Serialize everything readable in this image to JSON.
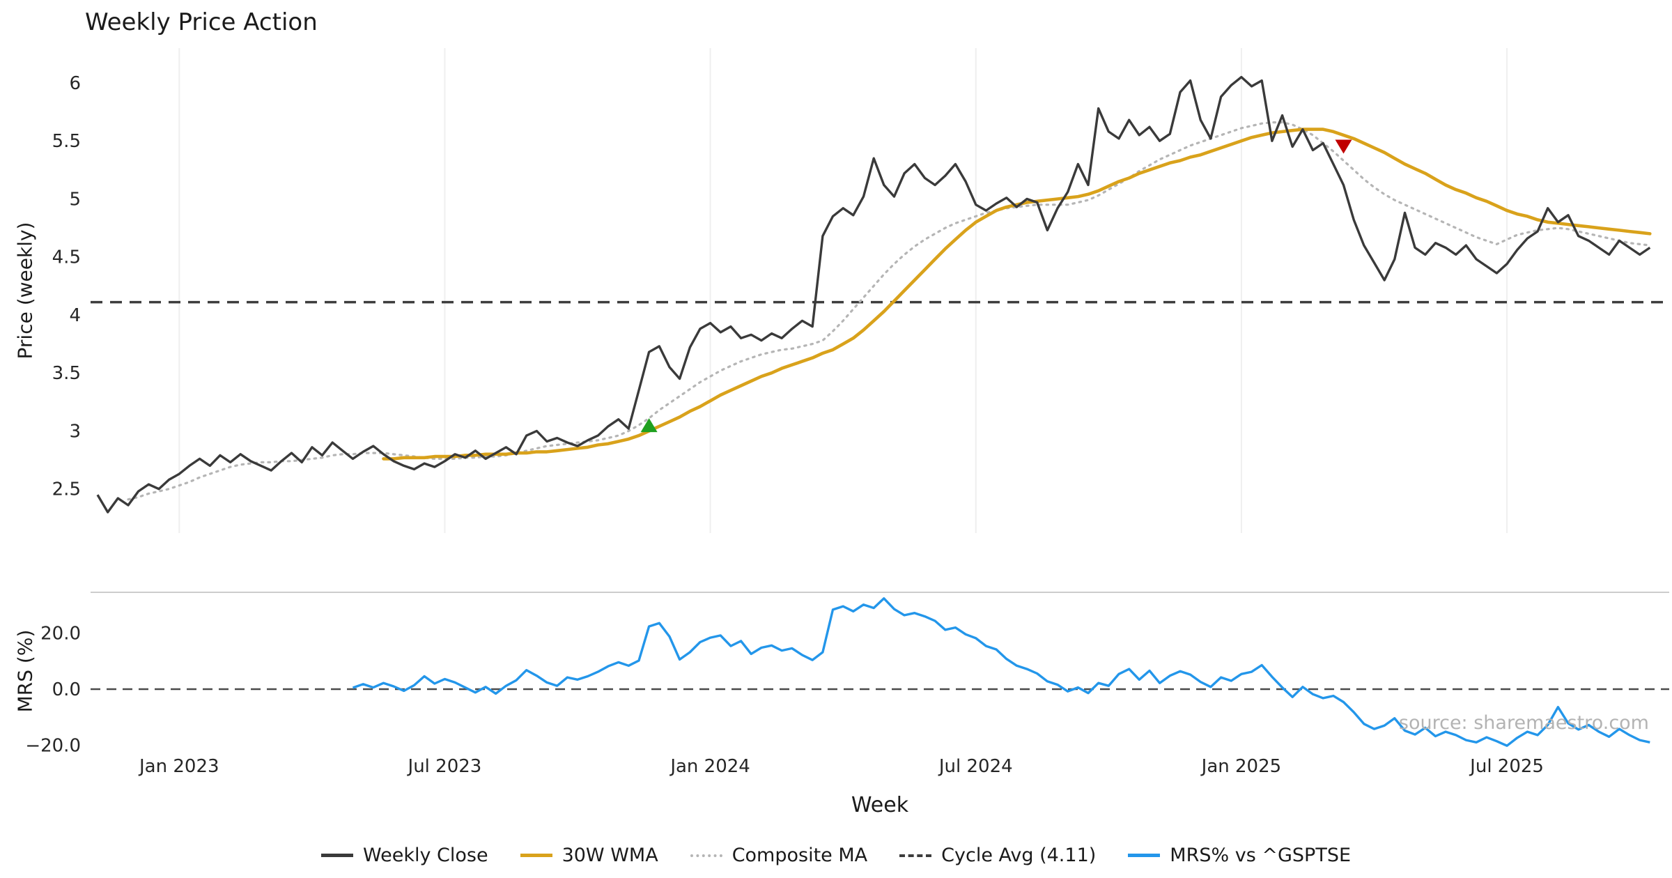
{
  "title": "Weekly Price Action",
  "source": "source: sharemaestro.com",
  "colors": {
    "close": "#3a3a3a",
    "wma": "#d9a21b",
    "composite": "#b5b5b5",
    "cycle": "#3d3d3d",
    "mrs": "#2396ea",
    "buy": "#1fa01f",
    "sell": "#c00000",
    "grid": "#efefef",
    "separator": "#cccccc",
    "zero_dash": "#4a4a4a"
  },
  "legend": [
    {
      "label": "Weekly Close",
      "style": "solid",
      "color": "#3a3a3a"
    },
    {
      "label": "30W WMA",
      "style": "solid",
      "color": "#d9a21b"
    },
    {
      "label": "Composite MA",
      "style": "dotted",
      "color": "#b5b5b5"
    },
    {
      "label": "Cycle Avg (4.11)",
      "style": "dashed",
      "color": "#3d3d3d"
    },
    {
      "label": "MRS% vs ^GSPTSE",
      "style": "solid",
      "color": "#2396ea"
    }
  ],
  "chart_data": [
    {
      "type": "line",
      "panel": "price",
      "title": "Weekly Price Action",
      "xlabel": "Week",
      "ylabel": "Price (weekly)",
      "ylim": [
        2.12,
        6.3
      ],
      "xlim_weeks": [
        0,
        152
      ],
      "grid": "vertical-only",
      "legend_position": "bottom",
      "cycle_avg": 4.11,
      "x_ticks": [
        {
          "week": 8,
          "label": "Jan 2023"
        },
        {
          "week": 34,
          "label": "Jul 2023"
        },
        {
          "week": 60,
          "label": "Jan 2024"
        },
        {
          "week": 86,
          "label": "Jul 2024"
        },
        {
          "week": 112,
          "label": "Jan 2025"
        },
        {
          "week": 138,
          "label": "Jul 2025"
        }
      ],
      "y_ticks": [
        {
          "value": 2.5,
          "label": "2.5"
        },
        {
          "value": 3,
          "label": "3"
        },
        {
          "value": 3.5,
          "label": "3.5"
        },
        {
          "value": 4,
          "label": "4"
        },
        {
          "value": 4.5,
          "label": "4.5"
        },
        {
          "value": 5,
          "label": "5"
        },
        {
          "value": 5.5,
          "label": "5.5"
        },
        {
          "value": 6,
          "label": "6"
        }
      ],
      "markers": [
        {
          "type": "buy",
          "week": 54,
          "value": 3.05
        },
        {
          "type": "sell",
          "week": 122,
          "value": 5.45
        }
      ],
      "series": [
        {
          "name": "Weekly Close",
          "start_week": 0,
          "values": [
            2.45,
            2.3,
            2.42,
            2.36,
            2.48,
            2.54,
            2.5,
            2.58,
            2.63,
            2.7,
            2.76,
            2.7,
            2.79,
            2.73,
            2.8,
            2.74,
            2.7,
            2.66,
            2.74,
            2.81,
            2.73,
            2.86,
            2.79,
            2.9,
            2.83,
            2.76,
            2.82,
            2.87,
            2.8,
            2.74,
            2.7,
            2.67,
            2.72,
            2.69,
            2.74,
            2.8,
            2.77,
            2.83,
            2.76,
            2.81,
            2.86,
            2.8,
            2.96,
            3.0,
            2.91,
            2.94,
            2.9,
            2.87,
            2.92,
            2.96,
            3.04,
            3.1,
            3.02,
            3.35,
            3.68,
            3.73,
            3.55,
            3.45,
            3.72,
            3.88,
            3.93,
            3.85,
            3.9,
            3.8,
            3.83,
            3.78,
            3.84,
            3.8,
            3.88,
            3.95,
            3.9,
            4.68,
            4.85,
            4.92,
            4.86,
            5.02,
            5.35,
            5.12,
            5.02,
            5.22,
            5.3,
            5.18,
            5.12,
            5.2,
            5.3,
            5.15,
            4.95,
            4.9,
            4.96,
            5.01,
            4.93,
            5.0,
            4.97,
            4.73,
            4.92,
            5.06,
            5.3,
            5.12,
            5.78,
            5.58,
            5.52,
            5.68,
            5.55,
            5.62,
            5.5,
            5.56,
            5.92,
            6.02,
            5.68,
            5.52,
            5.88,
            5.98,
            6.05,
            5.97,
            6.02,
            5.5,
            5.72,
            5.45,
            5.6,
            5.42,
            5.48,
            5.3,
            5.12,
            4.82,
            4.6,
            4.45,
            4.3,
            4.48,
            4.88,
            4.58,
            4.52,
            4.62,
            4.58,
            4.52,
            4.6,
            4.48,
            4.42,
            4.36,
            4.44,
            4.56,
            4.66,
            4.72,
            4.92,
            4.8,
            4.86,
            4.68,
            4.64,
            4.58,
            4.52,
            4.64,
            4.58,
            4.52,
            4.58
          ]
        },
        {
          "name": "30W WMA",
          "start_week": 28,
          "values": [
            2.76,
            2.76,
            2.77,
            2.77,
            2.77,
            2.78,
            2.78,
            2.78,
            2.79,
            2.79,
            2.8,
            2.8,
            2.8,
            2.81,
            2.81,
            2.82,
            2.82,
            2.83,
            2.84,
            2.85,
            2.86,
            2.88,
            2.89,
            2.91,
            2.93,
            2.96,
            3.0,
            3.04,
            3.08,
            3.12,
            3.17,
            3.21,
            3.26,
            3.31,
            3.35,
            3.39,
            3.43,
            3.47,
            3.5,
            3.54,
            3.57,
            3.6,
            3.63,
            3.67,
            3.7,
            3.75,
            3.8,
            3.87,
            3.95,
            4.03,
            4.12,
            4.21,
            4.3,
            4.39,
            4.48,
            4.57,
            4.65,
            4.73,
            4.8,
            4.85,
            4.9,
            4.93,
            4.95,
            4.97,
            4.98,
            4.99,
            5.0,
            5.01,
            5.02,
            5.04,
            5.07,
            5.11,
            5.15,
            5.18,
            5.22,
            5.25,
            5.28,
            5.31,
            5.33,
            5.36,
            5.38,
            5.41,
            5.44,
            5.47,
            5.5,
            5.53,
            5.55,
            5.57,
            5.58,
            5.59,
            5.6,
            5.6,
            5.6,
            5.58,
            5.55,
            5.52,
            5.48,
            5.44,
            5.4,
            5.35,
            5.3,
            5.26,
            5.22,
            5.17,
            5.12,
            5.08,
            5.05,
            5.01,
            4.98,
            4.94,
            4.9,
            4.87,
            4.85,
            4.82,
            4.8,
            4.79,
            4.78,
            4.77,
            4.76,
            4.75,
            4.74,
            4.73,
            4.72,
            4.71,
            4.7
          ]
        },
        {
          "name": "Composite MA",
          "start_week": 3,
          "values": [
            2.41,
            2.43,
            2.46,
            2.48,
            2.5,
            2.53,
            2.56,
            2.6,
            2.63,
            2.66,
            2.69,
            2.71,
            2.72,
            2.73,
            2.73,
            2.74,
            2.74,
            2.75,
            2.76,
            2.77,
            2.79,
            2.8,
            2.8,
            2.81,
            2.81,
            2.81,
            2.8,
            2.79,
            2.78,
            2.77,
            2.76,
            2.76,
            2.76,
            2.77,
            2.77,
            2.78,
            2.78,
            2.79,
            2.81,
            2.83,
            2.85,
            2.87,
            2.88,
            2.89,
            2.9,
            2.91,
            2.92,
            2.94,
            2.96,
            3.0,
            3.05,
            3.11,
            3.18,
            3.24,
            3.3,
            3.36,
            3.42,
            3.47,
            3.52,
            3.56,
            3.6,
            3.63,
            3.66,
            3.68,
            3.7,
            3.71,
            3.73,
            3.75,
            3.78,
            3.86,
            3.95,
            4.05,
            4.15,
            4.25,
            4.35,
            4.44,
            4.52,
            4.59,
            4.65,
            4.7,
            4.75,
            4.79,
            4.82,
            4.85,
            4.88,
            4.9,
            4.92,
            4.93,
            4.94,
            4.95,
            4.95,
            4.95,
            4.95,
            4.97,
            4.99,
            5.03,
            5.08,
            5.13,
            5.18,
            5.24,
            5.29,
            5.34,
            5.38,
            5.42,
            5.46,
            5.49,
            5.52,
            5.55,
            5.58,
            5.61,
            5.63,
            5.65,
            5.66,
            5.66,
            5.64,
            5.6,
            5.55,
            5.48,
            5.41,
            5.33,
            5.25,
            5.17,
            5.1,
            5.04,
            4.99,
            4.95,
            4.91,
            4.87,
            4.83,
            4.79,
            4.75,
            4.71,
            4.67,
            4.64,
            4.61,
            4.65,
            4.69,
            4.71,
            4.73,
            4.74,
            4.75,
            4.74,
            4.72,
            4.7,
            4.68,
            4.66,
            4.64,
            4.62,
            4.61,
            4.6
          ]
        }
      ]
    },
    {
      "type": "line",
      "panel": "mrs",
      "xlabel": "Week",
      "ylabel": "MRS (%)",
      "ylim": [
        -22.4,
        34.6
      ],
      "zero_line": 0,
      "grid": "off",
      "y_ticks": [
        {
          "value": 20,
          "label": "20.0"
        },
        {
          "value": 0,
          "label": "0.0"
        },
        {
          "value": -20,
          "label": "−20.0"
        }
      ],
      "series": [
        {
          "name": "MRS% vs ^GSPTSE",
          "start_week": 25,
          "values": [
            0.5,
            1.8,
            0.6,
            2.2,
            1.0,
            -0.6,
            1.4,
            4.6,
            2.0,
            3.6,
            2.4,
            0.6,
            -1.2,
            0.8,
            -1.6,
            1.2,
            3.2,
            6.8,
            4.8,
            2.4,
            1.2,
            4.2,
            3.4,
            4.6,
            6.2,
            8.2,
            9.6,
            8.4,
            10.2,
            22.4,
            23.6,
            18.8,
            10.6,
            13.2,
            16.8,
            18.4,
            19.2,
            15.4,
            17.2,
            12.6,
            14.8,
            15.6,
            13.8,
            14.6,
            12.2,
            10.4,
            13.2,
            28.4,
            29.6,
            27.8,
            30.2,
            29.0,
            32.4,
            28.6,
            26.4,
            27.2,
            26.0,
            24.4,
            21.2,
            22.0,
            19.6,
            18.2,
            15.4,
            14.2,
            10.8,
            8.4,
            7.2,
            5.6,
            2.8,
            1.6,
            -0.8,
            0.6,
            -1.4,
            2.2,
            1.2,
            5.4,
            7.2,
            3.4,
            6.6,
            2.2,
            4.8,
            6.4,
            5.2,
            2.6,
            0.8,
            4.2,
            3.0,
            5.4,
            6.2,
            8.6,
            4.4,
            0.6,
            -2.8,
            0.8,
            -1.8,
            -3.2,
            -2.4,
            -4.6,
            -8.2,
            -12.4,
            -14.2,
            -13.0,
            -10.4,
            -14.8,
            -16.2,
            -13.8,
            -16.8,
            -15.2,
            -16.4,
            -18.2,
            -19.0,
            -17.2,
            -18.6,
            -20.2,
            -17.4,
            -15.2,
            -16.4,
            -12.8,
            -6.4,
            -12.2,
            -14.4,
            -12.8,
            -15.2,
            -17.0,
            -14.2,
            -16.4,
            -18.2,
            -19.0
          ]
        }
      ]
    }
  ]
}
